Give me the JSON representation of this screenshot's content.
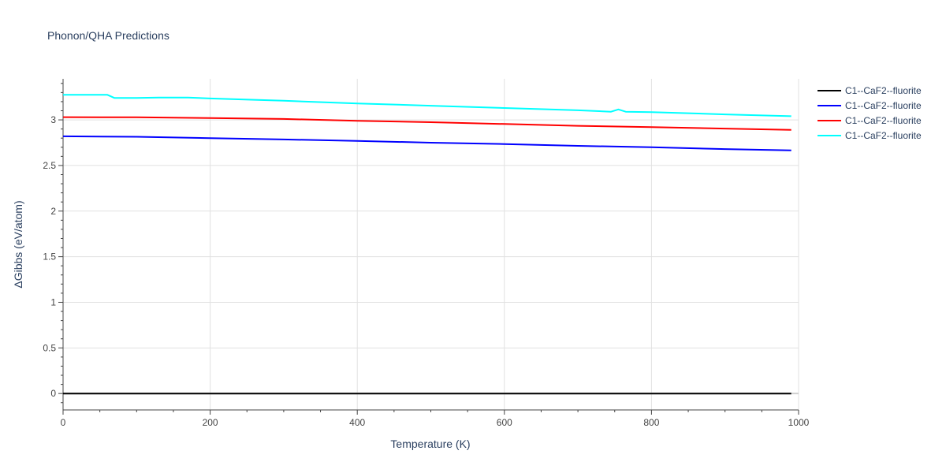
{
  "chart_data": {
    "type": "line",
    "title": "Phonon/QHA Predictions",
    "xlabel": "Temperature (K)",
    "ylabel": "ΔGibbs (eV/atom)",
    "xlim": [
      0,
      1000
    ],
    "ylim": [
      -0.18,
      3.45
    ],
    "x_ticks": [
      0,
      200,
      400,
      600,
      800,
      1000
    ],
    "x_tick_labels": [
      "0",
      "200",
      "400",
      "600",
      "800",
      "1000"
    ],
    "y_ticks": [
      0,
      0.5,
      1,
      1.5,
      2,
      2.5,
      3
    ],
    "y_tick_labels": [
      "0",
      "0.5",
      "1",
      "1.5",
      "2",
      "2.5",
      "3"
    ],
    "grid": true,
    "legend_position": "right",
    "series": [
      {
        "name": "C1--CaF2--fluorite",
        "color": "#000000",
        "x": [
          0,
          990
        ],
        "y": [
          0,
          0
        ]
      },
      {
        "name": "C1--CaF2--fluorite",
        "color": "#0000ff",
        "x": [
          0,
          100,
          200,
          300,
          400,
          500,
          600,
          700,
          800,
          900,
          990
        ],
        "y": [
          2.82,
          2.815,
          2.8,
          2.785,
          2.77,
          2.75,
          2.735,
          2.715,
          2.7,
          2.68,
          2.665
        ]
      },
      {
        "name": "C1--CaF2--fluorite",
        "color": "#ff0000",
        "x": [
          0,
          100,
          200,
          300,
          400,
          500,
          600,
          700,
          800,
          900,
          990
        ],
        "y": [
          3.03,
          3.028,
          3.02,
          3.01,
          2.99,
          2.975,
          2.955,
          2.935,
          2.92,
          2.905,
          2.89
        ]
      },
      {
        "name": "C1--CaF2--fluorite",
        "color": "#00ffff",
        "x": [
          0,
          60,
          70,
          100,
          130,
          170,
          200,
          300,
          400,
          500,
          600,
          700,
          745,
          755,
          765,
          800,
          900,
          990
        ],
        "y": [
          3.275,
          3.275,
          3.24,
          3.24,
          3.245,
          3.245,
          3.235,
          3.21,
          3.18,
          3.155,
          3.13,
          3.105,
          3.09,
          3.115,
          3.09,
          3.085,
          3.06,
          3.04
        ]
      }
    ]
  }
}
